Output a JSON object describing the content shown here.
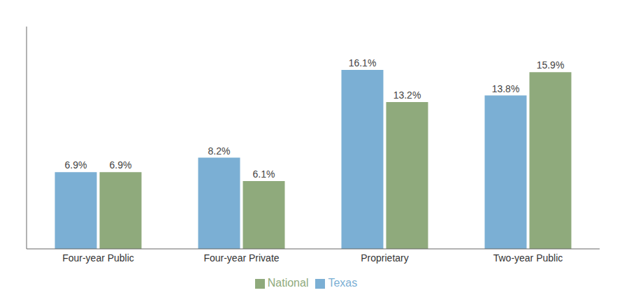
{
  "chart_data": {
    "type": "bar",
    "categories": [
      "Four-year Public",
      "Four-year Private",
      "Proprietary",
      "Two-year Public"
    ],
    "series": [
      {
        "name": "Texas",
        "color": "#7bafd4",
        "values": [
          6.9,
          8.2,
          16.1,
          13.8
        ],
        "value_labels": [
          "6.9%",
          "8.2%",
          "16.1%",
          "13.8%"
        ]
      },
      {
        "name": "National",
        "color": "#8faa7c",
        "values": [
          6.9,
          6.1,
          13.2,
          15.9
        ],
        "value_labels": [
          "6.9%",
          "6.1%",
          "13.2%",
          "15.9%"
        ]
      }
    ],
    "ylim": [
      0,
      20
    ],
    "legend": "bottom",
    "grid": false,
    "data_labels": true,
    "tick_labels": "x"
  }
}
